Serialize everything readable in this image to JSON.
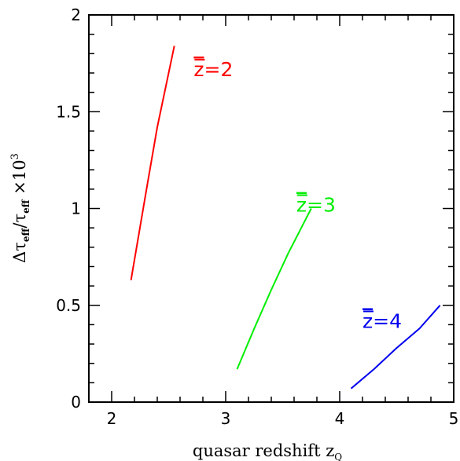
{
  "chart_data": {
    "type": "line",
    "title": "",
    "xlabel": "quasar redshift z",
    "xlabel_sub": "Q",
    "ylabel": "Δτ_eff/τ_eff ×10³",
    "xlim": [
      1.8,
      5.0
    ],
    "ylim": [
      0,
      2.0
    ],
    "x_ticks": [
      "2",
      "3",
      "4",
      "5"
    ],
    "y_ticks": [
      "0",
      "0.5",
      "1",
      "1.5",
      "2"
    ],
    "grid": false,
    "series": [
      {
        "name": "z̅=2",
        "label_prefix": "z",
        "label_suffix": "=2",
        "color": "#ff0000",
        "x": [
          2.17,
          2.3,
          2.4,
          2.55
        ],
        "y": [
          0.63,
          1.08,
          1.42,
          1.84
        ]
      },
      {
        "name": "z̅=3",
        "label_prefix": "z",
        "label_suffix": "=3",
        "color": "#00ee00",
        "x": [
          3.1,
          3.25,
          3.4,
          3.55,
          3.75
        ],
        "y": [
          0.17,
          0.38,
          0.58,
          0.77,
          1.0
        ]
      },
      {
        "name": "z̅=4",
        "label_prefix": "z",
        "label_suffix": "=4",
        "color": "#0000ee",
        "x": [
          4.1,
          4.3,
          4.5,
          4.7,
          4.88
        ],
        "y": [
          0.07,
          0.17,
          0.28,
          0.38,
          0.5
        ]
      }
    ]
  }
}
